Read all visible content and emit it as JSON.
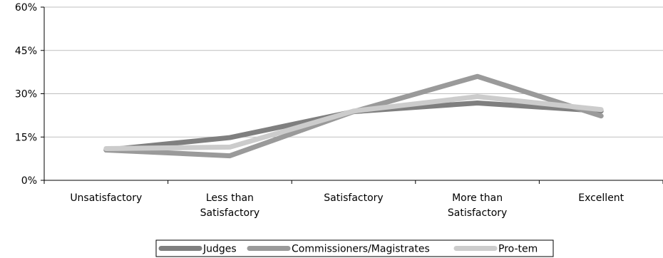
{
  "chart_data": {
    "type": "line",
    "categories": [
      "Unsatisfactory",
      "Less than Satisfactory",
      "Satisfactory",
      "More than Satisfactory",
      "Excellent"
    ],
    "category_lines": [
      [
        "Unsatisfactory"
      ],
      [
        "Less than",
        "Satisfactory"
      ],
      [
        "Satisfactory"
      ],
      [
        "More than",
        "Satisfactory"
      ],
      [
        "Excellent"
      ]
    ],
    "y_ticks": [
      "0%",
      "15%",
      "30%",
      "45%",
      "60%"
    ],
    "ylim": [
      0,
      60
    ],
    "y_tick_values": [
      0,
      15,
      30,
      45,
      60
    ],
    "grid": true,
    "legend_position": "bottom",
    "series": [
      {
        "name": "Judges",
        "color": "#7f7f7f",
        "values": [
          10.5,
          14.8,
          23.8,
          26.8,
          24.0
        ]
      },
      {
        "name": "Commissioners/Magistrates",
        "color": "#9a9a9a",
        "values": [
          10.5,
          8.5,
          23.8,
          36.0,
          22.3
        ]
      },
      {
        "name": "Pro-tem",
        "color": "#cccccc",
        "values": [
          11.0,
          11.5,
          24.0,
          29.0,
          24.5
        ]
      }
    ]
  }
}
